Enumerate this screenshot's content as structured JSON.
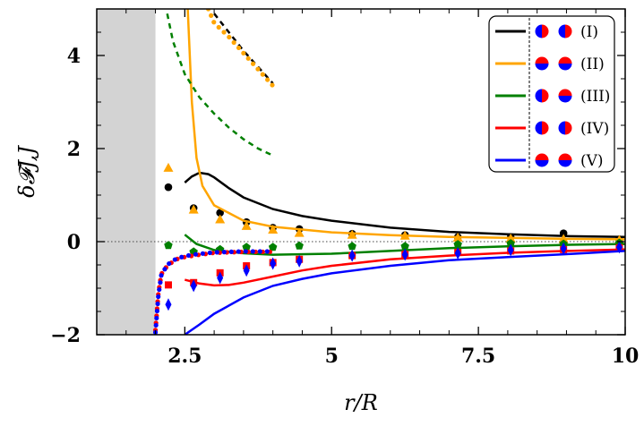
{
  "chart_data": {
    "type": "line",
    "xlabel": "r/R",
    "ylabel": "δ𝓕J,J",
    "xlim": [
      1.0,
      10.0
    ],
    "ylim": [
      -2.0,
      5.0
    ],
    "x_ticks": [
      2.5,
      5,
      7.5,
      10
    ],
    "x_tick_labels": [
      "2.5",
      "5",
      "7.5",
      "10"
    ],
    "y_ticks": [
      -2,
      0,
      2,
      4
    ],
    "y_tick_labels": [
      "−2",
      "0",
      "2",
      "4"
    ],
    "shaded_region": {
      "x_from": 1.0,
      "x_to": 2.0,
      "color": "#d3d3d3"
    },
    "reference_line": {
      "y": 0,
      "style": "dotted"
    },
    "legend": {
      "position": "top-right"
    },
    "series": [
      {
        "name": "(I)",
        "color": "#000000",
        "icons": [
          [
            "half-vertical-left-blue",
            "half-vertical-left-blue"
          ]
        ],
        "curve": [
          [
            2.5,
            1.27
          ],
          [
            2.62,
            1.4
          ],
          [
            2.75,
            1.48
          ],
          [
            2.9,
            1.45
          ],
          [
            3.0,
            1.38
          ],
          [
            3.25,
            1.15
          ],
          [
            3.5,
            0.95
          ],
          [
            4.0,
            0.7
          ],
          [
            4.5,
            0.55
          ],
          [
            5.0,
            0.45
          ],
          [
            6.0,
            0.3
          ],
          [
            7.0,
            0.21
          ],
          [
            8.0,
            0.16
          ],
          [
            9.0,
            0.12
          ],
          [
            10.0,
            0.1
          ]
        ],
        "points": [
          [
            2.22,
            1.17
          ],
          [
            2.65,
            0.72
          ],
          [
            3.1,
            0.62
          ],
          [
            3.55,
            0.42
          ],
          [
            4.0,
            0.3
          ],
          [
            4.45,
            0.27
          ],
          [
            5.35,
            0.17
          ],
          [
            6.25,
            0.14
          ],
          [
            7.15,
            0.1
          ],
          [
            8.05,
            0.1
          ],
          [
            8.95,
            0.18
          ],
          [
            9.9,
            0.05
          ]
        ],
        "marker": "circle",
        "upper_curve": [
          [
            3.0,
            4.9
          ],
          [
            3.25,
            4.5
          ],
          [
            3.5,
            4.1
          ],
          [
            3.75,
            3.75
          ],
          [
            4.0,
            3.4
          ]
        ],
        "upper_curve_style": "dashed-orange-black"
      },
      {
        "name": "(II)",
        "color": "#ffa500",
        "icons": [
          [
            "half-horizontal-red-top",
            "half-horizontal-red-top"
          ]
        ],
        "curve": [
          [
            2.55,
            5.0
          ],
          [
            2.62,
            3.0
          ],
          [
            2.7,
            1.8
          ],
          [
            2.8,
            1.2
          ],
          [
            3.0,
            0.78
          ],
          [
            3.5,
            0.45
          ],
          [
            4.0,
            0.32
          ],
          [
            5.0,
            0.2
          ],
          [
            6.0,
            0.14
          ],
          [
            7.0,
            0.1
          ],
          [
            8.0,
            0.08
          ],
          [
            9.0,
            0.06
          ],
          [
            10.0,
            0.05
          ]
        ],
        "points": [
          [
            2.22,
            1.58
          ],
          [
            2.65,
            0.68
          ],
          [
            3.1,
            0.47
          ],
          [
            3.55,
            0.33
          ],
          [
            4.0,
            0.25
          ],
          [
            4.45,
            0.18
          ],
          [
            5.35,
            0.14
          ],
          [
            6.25,
            0.12
          ],
          [
            7.15,
            0.08
          ],
          [
            8.05,
            0.06
          ],
          [
            8.95,
            0.05
          ],
          [
            9.9,
            0.03
          ]
        ],
        "marker": "triangle",
        "upper_curve": [
          [
            2.9,
            5.0
          ],
          [
            3.0,
            4.7
          ],
          [
            3.25,
            4.4
          ],
          [
            3.5,
            4.05
          ],
          [
            3.75,
            3.7
          ],
          [
            4.0,
            3.35
          ]
        ],
        "upper_curve_style": "dotted-large-circles"
      },
      {
        "name": "(III)",
        "color": "#008000",
        "icons": [
          [
            "half-vertical-left-blue",
            "half-horizontal-red-top"
          ]
        ],
        "curve": [
          [
            2.5,
            0.15
          ],
          [
            2.7,
            -0.05
          ],
          [
            3.0,
            -0.18
          ],
          [
            3.5,
            -0.25
          ],
          [
            4.0,
            -0.28
          ],
          [
            5.0,
            -0.26
          ],
          [
            6.0,
            -0.2
          ],
          [
            7.0,
            -0.14
          ],
          [
            8.0,
            -0.1
          ],
          [
            9.0,
            -0.07
          ],
          [
            10.0,
            -0.05
          ]
        ],
        "points": [
          [
            2.22,
            -0.08
          ],
          [
            2.65,
            -0.22
          ],
          [
            3.1,
            -0.17
          ],
          [
            3.55,
            -0.12
          ],
          [
            4.0,
            -0.12
          ],
          [
            4.45,
            -0.09
          ],
          [
            5.35,
            -0.1
          ],
          [
            6.25,
            -0.1
          ],
          [
            7.15,
            -0.06
          ],
          [
            8.05,
            -0.04
          ],
          [
            8.95,
            -0.05
          ],
          [
            9.9,
            -0.03
          ]
        ],
        "marker": "pentagon",
        "dashed_curve": [
          [
            2.2,
            4.9
          ],
          [
            2.3,
            4.3
          ],
          [
            2.5,
            3.6
          ],
          [
            2.75,
            3.1
          ],
          [
            3.0,
            2.75
          ],
          [
            3.25,
            2.45
          ],
          [
            3.5,
            2.2
          ],
          [
            3.75,
            2.0
          ],
          [
            4.0,
            1.85
          ]
        ]
      },
      {
        "name": "(IV)",
        "color": "#ff0000",
        "icons": [
          [
            "half-vertical-left-blue",
            "half-vertical-right-red"
          ]
        ],
        "curve": [
          [
            2.5,
            -0.82
          ],
          [
            2.75,
            -0.9
          ],
          [
            3.0,
            -0.94
          ],
          [
            3.25,
            -0.93
          ],
          [
            3.5,
            -0.88
          ],
          [
            4.0,
            -0.75
          ],
          [
            4.5,
            -0.62
          ],
          [
            5.0,
            -0.52
          ],
          [
            6.0,
            -0.38
          ],
          [
            7.0,
            -0.3
          ],
          [
            8.0,
            -0.24
          ],
          [
            9.0,
            -0.2
          ],
          [
            10.0,
            -0.17
          ]
        ],
        "points": [
          [
            2.22,
            -0.93
          ],
          [
            2.65,
            -0.88
          ],
          [
            3.1,
            -0.67
          ],
          [
            3.55,
            -0.52
          ],
          [
            4.0,
            -0.45
          ],
          [
            4.45,
            -0.38
          ],
          [
            5.35,
            -0.3
          ],
          [
            6.25,
            -0.27
          ],
          [
            7.15,
            -0.23
          ],
          [
            8.05,
            -0.2
          ],
          [
            8.95,
            -0.17
          ],
          [
            9.9,
            -0.13
          ]
        ],
        "marker": "square",
        "dotted_curve": [
          [
            2.0,
            -1.9
          ],
          [
            2.05,
            -1.1
          ],
          [
            2.1,
            -0.7
          ],
          [
            2.2,
            -0.52
          ],
          [
            2.35,
            -0.38
          ],
          [
            2.5,
            -0.33
          ],
          [
            2.7,
            -0.29
          ],
          [
            3.0,
            -0.24
          ],
          [
            3.5,
            -0.22
          ],
          [
            4.0,
            -0.22
          ]
        ]
      },
      {
        "name": "(V)",
        "color": "#0000ff",
        "icons": [
          [
            "half-horizontal-blue-bottom",
            "half-horizontal-blue-bottom"
          ]
        ],
        "curve": [
          [
            2.5,
            -2.0
          ],
          [
            2.75,
            -1.78
          ],
          [
            3.0,
            -1.55
          ],
          [
            3.5,
            -1.2
          ],
          [
            4.0,
            -0.95
          ],
          [
            4.5,
            -0.8
          ],
          [
            5.0,
            -0.68
          ],
          [
            6.0,
            -0.52
          ],
          [
            7.0,
            -0.4
          ],
          [
            8.0,
            -0.33
          ],
          [
            9.0,
            -0.27
          ],
          [
            10.0,
            -0.2
          ]
        ],
        "points": [
          [
            2.22,
            -1.35
          ],
          [
            2.65,
            -0.95
          ],
          [
            3.1,
            -0.78
          ],
          [
            3.55,
            -0.62
          ],
          [
            4.0,
            -0.47
          ],
          [
            4.45,
            -0.42
          ],
          [
            5.35,
            -0.3
          ],
          [
            6.25,
            -0.28
          ],
          [
            7.15,
            -0.25
          ],
          [
            8.05,
            -0.18
          ],
          [
            8.95,
            -0.15
          ],
          [
            9.9,
            -0.12
          ]
        ],
        "marker": "diamond",
        "dotted_curve": [
          [
            2.0,
            -1.95
          ],
          [
            2.05,
            -1.15
          ],
          [
            2.1,
            -0.72
          ],
          [
            2.2,
            -0.5
          ],
          [
            2.35,
            -0.37
          ],
          [
            2.5,
            -0.31
          ],
          [
            2.7,
            -0.27
          ],
          [
            3.0,
            -0.23
          ],
          [
            3.5,
            -0.21
          ],
          [
            4.0,
            -0.21
          ]
        ]
      }
    ]
  },
  "colors": {
    "red_hemisphere": "#ff0000",
    "blue_hemisphere": "#0000ff",
    "shading": "#d3d3d3"
  }
}
